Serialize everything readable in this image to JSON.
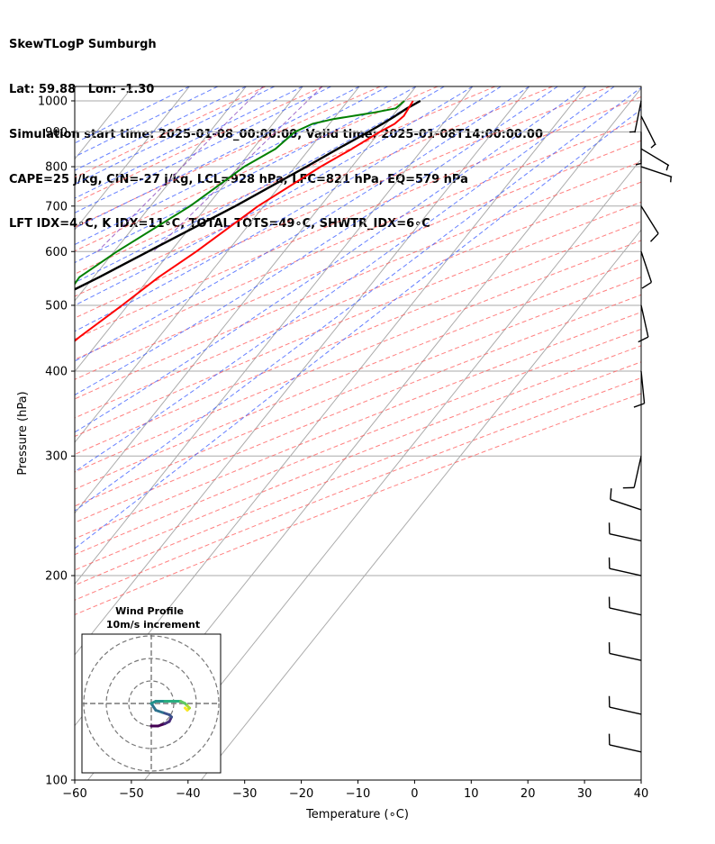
{
  "title_lines": [
    "SkewTLogP Sumburgh",
    "Lat: 59.88   Lon: -1.30",
    "Simulation start time: 2025-01-08_00:00:00, Valid time: 2025-01-08T14:00:00.00",
    "CAPE=25 j/kg, CIN=-27 j/kg, LCL=928 hPa, LFC=821 hPa, EQ=579 hPa",
    "LFT IDX=4∘C, K IDX=11∘C, TOTAL TOTS=49∘C, SHWTR_IDX=6∘C"
  ],
  "chart_data": {
    "type": "line",
    "subtype": "skew-T log-P",
    "xlabel": "Temperature (∘C)",
    "ylabel": "Pressure (hPa)",
    "xlim": [
      -60,
      40
    ],
    "ylim": [
      1050,
      100
    ],
    "x_ticks": [
      -60,
      -50,
      -40,
      -30,
      -20,
      -10,
      0,
      10,
      20,
      30,
      40
    ],
    "x_tick_labels": [
      "−60",
      "−50",
      "−40",
      "−30",
      "−20",
      "−10",
      "0",
      "10",
      "20",
      "30",
      "40"
    ],
    "y_ticks": [
      1000,
      900,
      800,
      700,
      600,
      500,
      400,
      300,
      200,
      100
    ],
    "y_scale": "log",
    "grid": true,
    "colors": {
      "temperature": "#ff0000",
      "dewpoint": "#008000",
      "parcel": "#000000",
      "cape_fill": "#a3c6e0",
      "dry_adiabat": "#ff5555",
      "moist_adiabat": "#3355ff",
      "mixing_ratio": "#8844bb",
      "isotherm": "#aaaaaa"
    },
    "series": [
      {
        "key": "temperature",
        "points": [
          [
            1000,
            1.5
          ],
          [
            950,
            2.0
          ],
          [
            925,
            1.5
          ],
          [
            900,
            0.0
          ],
          [
            850,
            -2.5
          ],
          [
            800,
            -5.5
          ],
          [
            700,
            -11.0
          ],
          [
            600,
            -15.5
          ],
          [
            550,
            -18.5
          ],
          [
            500,
            -21.0
          ],
          [
            450,
            -24.0
          ],
          [
            430,
            -25.0
          ],
          [
            400,
            -29.5
          ],
          [
            370,
            -34.0
          ],
          [
            350,
            -37.0
          ],
          [
            300,
            -44.0
          ],
          [
            270,
            -47.5
          ],
          [
            250,
            -49.0
          ],
          [
            220,
            -49.0
          ],
          [
            200,
            -49.0
          ],
          [
            180,
            -50.5
          ],
          [
            150,
            -53.5
          ],
          [
            130,
            -57.0
          ],
          [
            120,
            -58.5
          ],
          [
            100,
            -60.5
          ]
        ]
      },
      {
        "key": "dewpoint",
        "points": [
          [
            1000,
            0.0
          ],
          [
            975,
            -0.5
          ],
          [
            960,
            -4.0
          ],
          [
            940,
            -10.0
          ],
          [
            925,
            -13.0
          ],
          [
            900,
            -15.0
          ],
          [
            850,
            -16.0
          ],
          [
            800,
            -19.0
          ],
          [
            700,
            -23.0
          ],
          [
            600,
            -29.5
          ],
          [
            550,
            -32.5
          ],
          [
            500,
            -32.0
          ],
          [
            470,
            -34.5
          ],
          [
            450,
            -37.0
          ],
          [
            420,
            -38.5
          ],
          [
            400,
            -39.0
          ],
          [
            330,
            -47.0
          ],
          [
            310,
            -51.0
          ],
          [
            300,
            -53.0
          ],
          [
            280,
            -54.5
          ],
          [
            240,
            -56.0
          ],
          [
            200,
            -59.5
          ],
          [
            170,
            -64.0
          ],
          [
            150,
            -68.0
          ],
          [
            140,
            -71.5
          ],
          [
            120,
            -75.5
          ],
          [
            100,
            -80.0
          ]
        ]
      },
      {
        "key": "parcel",
        "points": [
          [
            1000,
            2.8
          ],
          [
            975,
            1.5
          ],
          [
            950,
            0.5
          ],
          [
            928,
            -0.5
          ],
          [
            900,
            -2.0
          ],
          [
            850,
            -5.0
          ],
          [
            800,
            -8.0
          ],
          [
            700,
            -15.0
          ],
          [
            600,
            -24.0
          ],
          [
            550,
            -29.0
          ],
          [
            500,
            -35.0
          ],
          [
            450,
            -41.5
          ],
          [
            400,
            -48.5
          ],
          [
            350,
            -56.5
          ],
          [
            300,
            -65.0
          ],
          [
            250,
            -75.0
          ],
          [
            200,
            -87.0
          ],
          [
            150,
            -101.0
          ],
          [
            100,
            -122.0
          ]
        ]
      }
    ],
    "cape_region": {
      "from_hPa": 430,
      "to_hPa": 100
    },
    "wind_barbs": [
      {
        "p": 1000,
        "u": 1,
        "v": 5
      },
      {
        "p": 950,
        "u": -2,
        "v": 4
      },
      {
        "p": 900,
        "u": 0,
        "v": 5
      },
      {
        "p": 850,
        "u": -5,
        "v": 3
      },
      {
        "p": 800,
        "u": -6,
        "v": 2
      },
      {
        "p": 700,
        "u": -5,
        "v": 8
      },
      {
        "p": 600,
        "u": -3,
        "v": 9
      },
      {
        "p": 500,
        "u": -2,
        "v": 9
      },
      {
        "p": 400,
        "u": -1,
        "v": 10
      },
      {
        "p": 300,
        "u": 2,
        "v": 9
      },
      {
        "p": 250,
        "u": 9,
        "v": -3
      },
      {
        "p": 225,
        "u": 9,
        "v": -2
      },
      {
        "p": 200,
        "u": 9,
        "v": -2
      },
      {
        "p": 175,
        "u": 9,
        "v": -2
      },
      {
        "p": 150,
        "u": 9,
        "v": -2
      },
      {
        "p": 125,
        "u": 9,
        "v": -2
      },
      {
        "p": 110,
        "u": 9,
        "v": -2
      }
    ],
    "hodograph": {
      "title_line1": "Wind Profile",
      "title_line2": "10m/s increment",
      "rings_ms": [
        10,
        20,
        30
      ],
      "colormap": "viridis",
      "points": [
        [
          0,
          -10
        ],
        [
          3,
          -10
        ],
        [
          6,
          -9
        ],
        [
          8,
          -8
        ],
        [
          9,
          -6
        ],
        [
          8,
          -5
        ],
        [
          5,
          -4
        ],
        [
          2,
          -3
        ],
        [
          0,
          0
        ],
        [
          2,
          1
        ],
        [
          6,
          1
        ],
        [
          10,
          1
        ],
        [
          13,
          1
        ],
        [
          15,
          0
        ],
        [
          16,
          -1
        ],
        [
          17,
          -2
        ],
        [
          16,
          -3
        ],
        [
          15,
          -2
        ]
      ]
    }
  }
}
